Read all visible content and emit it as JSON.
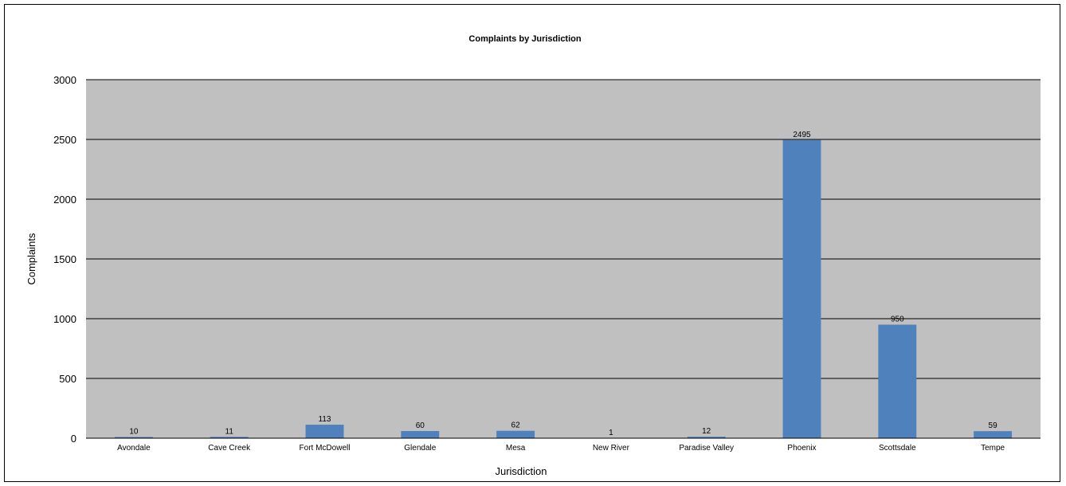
{
  "chart_data": {
    "type": "bar",
    "title": "Complaints by Jurisdiction",
    "xlabel": "Jurisdiction",
    "ylabel": "Complaints",
    "categories": [
      "Avondale",
      "Cave Creek",
      "Fort McDowell",
      "Glendale",
      "Mesa",
      "New River",
      "Paradise Valley",
      "Phoenix",
      "Scottsdale",
      "Tempe"
    ],
    "values": [
      10,
      11,
      113,
      60,
      62,
      1,
      12,
      2495,
      950,
      59
    ],
    "ylim": [
      0,
      3000
    ],
    "yticks": [
      0,
      500,
      1000,
      1500,
      2000,
      2500,
      3000
    ],
    "grid": true,
    "legend": "none",
    "colors": {
      "bar": "#4f81bd",
      "plot_background": "#c0c0c0",
      "gridline": "#000000"
    }
  }
}
